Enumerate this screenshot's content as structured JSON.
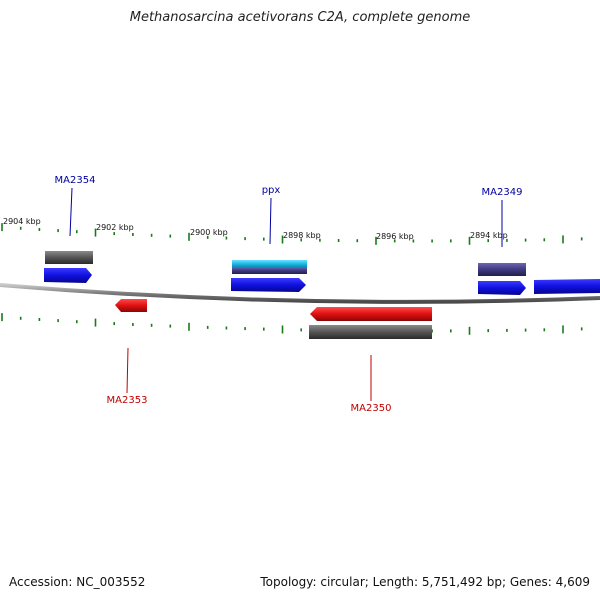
{
  "title": "Methanosarcina acetivorans C2A, complete genome",
  "footer": {
    "accession": "Accession: NC_003552",
    "summary": "Topology: circular; Length: 5,751,492 bp; Genes: 4,609"
  },
  "colors": {
    "backbone": "#8c8c8c",
    "tick": "#1a7a1a",
    "forward_cds": "#1010e0",
    "reverse_cds": "#e01010",
    "gene_gray": "#555555",
    "ppx_cyan": "#19b8e6",
    "label_blue": "#0000a0",
    "label_red": "#c00000",
    "ma2349_purple": "#3e3a80"
  },
  "scale_labels": [
    "2904 kbp",
    "2902 kbp",
    "2900 kbp",
    "2898 kbp",
    "2896 kbp",
    "2894 kbp"
  ],
  "gene_labels": {
    "ma2354": "MA2354",
    "ppx": "ppx",
    "ma2349": "MA2349",
    "ma2353": "MA2353",
    "ma2350": "MA2350"
  }
}
